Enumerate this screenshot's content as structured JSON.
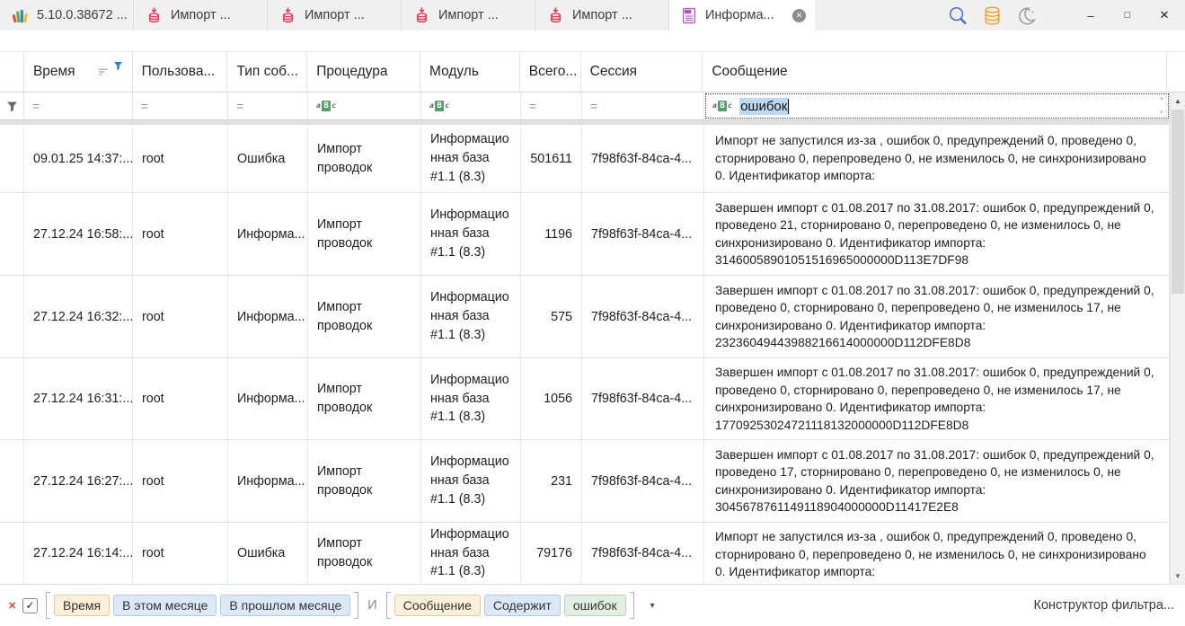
{
  "tab_bar": {
    "tabs": [
      {
        "id": "app",
        "label": "5.10.0.38672 ...",
        "icon": "app-logo-icon",
        "active": false,
        "closable": false
      },
      {
        "id": "import-1",
        "label": "Импорт ...",
        "icon": "import-database-icon",
        "active": false,
        "closable": false
      },
      {
        "id": "import-2",
        "label": "Импорт ...",
        "icon": "import-database-icon",
        "active": false,
        "closable": false
      },
      {
        "id": "import-3",
        "label": "Импорт ...",
        "icon": "import-database-icon",
        "active": false,
        "closable": false
      },
      {
        "id": "import-4",
        "label": "Импорт ...",
        "icon": "import-database-icon",
        "active": false,
        "closable": false
      },
      {
        "id": "log",
        "label": "Информа...",
        "icon": "log-document-icon",
        "active": true,
        "closable": true
      }
    ],
    "action_icons": [
      {
        "name": "search-icon"
      },
      {
        "name": "database-icon"
      },
      {
        "name": "night-mode-icon"
      }
    ],
    "window_controls": {
      "minimize": "–",
      "maximize": "□",
      "close": "✕"
    }
  },
  "icons": {
    "tab_close": "✕",
    "scroll_up": "▲",
    "scroll_down": "▼",
    "spin_up": "▲",
    "spin_down": "▼",
    "caret_down": "▼",
    "checkbox_check": "✓",
    "remove_filter": "✕",
    "equals_operator": "="
  },
  "grid": {
    "columns": [
      {
        "key": "time",
        "label": "Время",
        "filter_type": "equals",
        "sorted": true,
        "filtered": true
      },
      {
        "key": "user",
        "label": "Пользова...",
        "filter_type": "equals"
      },
      {
        "key": "type",
        "label": "Тип соб...",
        "filter_type": "equals"
      },
      {
        "key": "procedure",
        "label": "Процедура",
        "filter_type": "contains"
      },
      {
        "key": "module",
        "label": "Модуль",
        "filter_type": "contains"
      },
      {
        "key": "total",
        "label": "Всего...",
        "filter_type": "equals",
        "align": "right"
      },
      {
        "key": "session",
        "label": "Сессия",
        "filter_type": "equals"
      },
      {
        "key": "message",
        "label": "Сообщение",
        "filter_type": "contains",
        "filter_value": "ошибок",
        "filter_focused": true
      }
    ],
    "rows": [
      {
        "time": "09.01.25 14:37:...",
        "user": "root",
        "type": "Ошибка",
        "procedure": "Импорт проводок",
        "module": "Информационная база #1.1 (8.3)",
        "total": "501611",
        "session": "7f98f63f-84ca-4...",
        "message": "Импорт не запустился из-за , ошибок 0, предупреждений 0, проведено 0, сторнировано 0, перепроведено 0, не изменилось 0, не синхронизировано 0. Идентификатор импорта:"
      },
      {
        "time": "27.12.24 16:58:...",
        "user": "root",
        "type": "Информа...",
        "procedure": "Импорт проводок",
        "module": "Информационная база #1.1 (8.3)",
        "total": "1196",
        "session": "7f98f63f-84ca-4...",
        "message": "Завершен импорт с 01.08.2017 по 31.08.2017: ошибок 0, предупреждений 0, проведено 21, сторнировано 0, перепроведено 0, не изменилось 0, не синхронизировано 0. Идентификатор импорта: 31460058901051516965000000D113E7DF98"
      },
      {
        "time": "27.12.24 16:32:...",
        "user": "root",
        "type": "Информа...",
        "procedure": "Импорт проводок",
        "module": "Информационная база #1.1 (8.3)",
        "total": "575",
        "session": "7f98f63f-84ca-4...",
        "message": "Завершен импорт с 01.08.2017 по 31.08.2017: ошибок 0, предупреждений 0, проведено 0, сторнировано 0, перепроведено 0, не изменилось 17, не синхронизировано 0. Идентификатор импорта: 23236049443988216614000000D112DFE8D8"
      },
      {
        "time": "27.12.24 16:31:...",
        "user": "root",
        "type": "Информа...",
        "procedure": "Импорт проводок",
        "module": "Информационная база #1.1 (8.3)",
        "total": "1056",
        "session": "7f98f63f-84ca-4...",
        "message": "Завершен импорт с 01.08.2017 по 31.08.2017: ошибок 0, предупреждений 0, проведено 0, сторнировано 0, перепроведено 0, не изменилось 17, не синхронизировано 0. Идентификатор импорта: 17709253024721118132000000D112DFE8D8"
      },
      {
        "time": "27.12.24 16:27:...",
        "user": "root",
        "type": "Информа...",
        "procedure": "Импорт проводок",
        "module": "Информационная база #1.1 (8.3)",
        "total": "231",
        "session": "7f98f63f-84ca-4...",
        "message": "Завершен импорт с 01.08.2017 по 31.08.2017: ошибок 0, предупреждений 0, проведено 17, сторнировано 0, перепроведено 0, не изменилось 0, не синхронизировано 0. Идентификатор импорта: 3045678761149118904000000D11417E2E8"
      },
      {
        "time": "27.12.24 16:14:...",
        "user": "root",
        "type": "Ошибка",
        "procedure": "Импорт проводок",
        "module": "Информационная база #1.1 (8.3)",
        "total": "79176",
        "session": "7f98f63f-84ca-4...",
        "message": "Импорт не запустился из-за , ошибок 0, предупреждений 0, проведено 0, сторнировано 0, перепроведено 0, не изменилось 0, не синхронизировано 0. Идентификатор импорта:"
      }
    ]
  },
  "filter_panel": {
    "remove_icon": "✕",
    "checkbox_checked": true,
    "groups": [
      {
        "field": "Время",
        "conditions": [
          "В этом месяце",
          "В прошлом месяце"
        ]
      },
      {
        "field": "Сообщение",
        "conditions": [
          "Содержит"
        ],
        "value": "ошибок"
      }
    ],
    "join_operator": "И",
    "builder_label": "Конструктор фильтра..."
  }
}
